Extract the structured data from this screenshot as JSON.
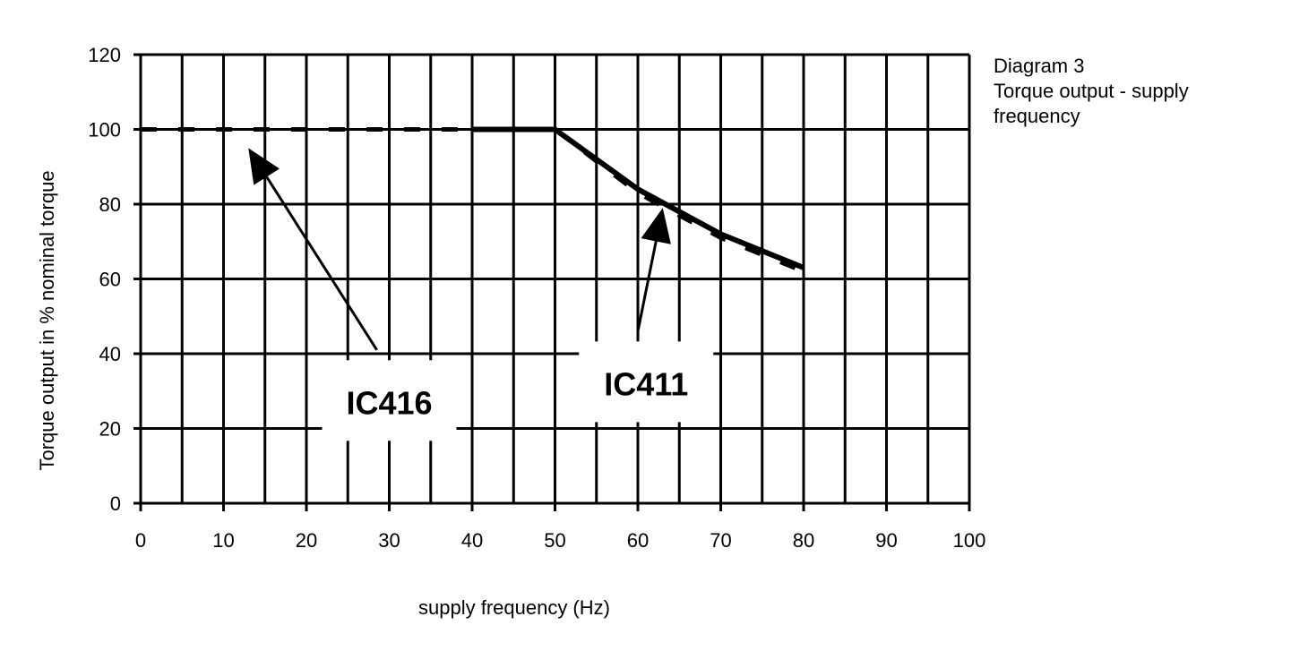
{
  "chart_data": {
    "type": "line",
    "title_lines": [
      "Diagram 3",
      "Torque output - supply",
      "frequency"
    ],
    "xlabel": "supply frequency (Hz)",
    "ylabel": "Torque output in % nominal torque",
    "xlim": [
      0,
      100
    ],
    "ylim": [
      0,
      120
    ],
    "x_ticks": [
      0,
      10,
      20,
      30,
      40,
      50,
      60,
      70,
      80,
      90,
      100
    ],
    "y_ticks": [
      0,
      20,
      40,
      60,
      80,
      100,
      120
    ],
    "grid": true,
    "series": [
      {
        "name": "IC416",
        "style": "dashed",
        "x": [
          0,
          50,
          60,
          70,
          80
        ],
        "y": [
          100,
          100,
          83,
          71,
          62
        ]
      },
      {
        "name": "IC411",
        "style": "solid",
        "x": [
          40,
          50,
          60,
          70,
          80
        ],
        "y": [
          100,
          100,
          84,
          72,
          63
        ]
      }
    ],
    "annotations": [
      {
        "text": "IC416",
        "label_x": 30,
        "label_y": 27,
        "arrow_from": [
          28.5,
          41
        ],
        "arrow_to": [
          13,
          95
        ]
      },
      {
        "text": "IC411",
        "label_x": 61,
        "label_y": 32,
        "arrow_from": [
          60,
          46
        ],
        "arrow_to": [
          63,
          79
        ]
      }
    ]
  }
}
